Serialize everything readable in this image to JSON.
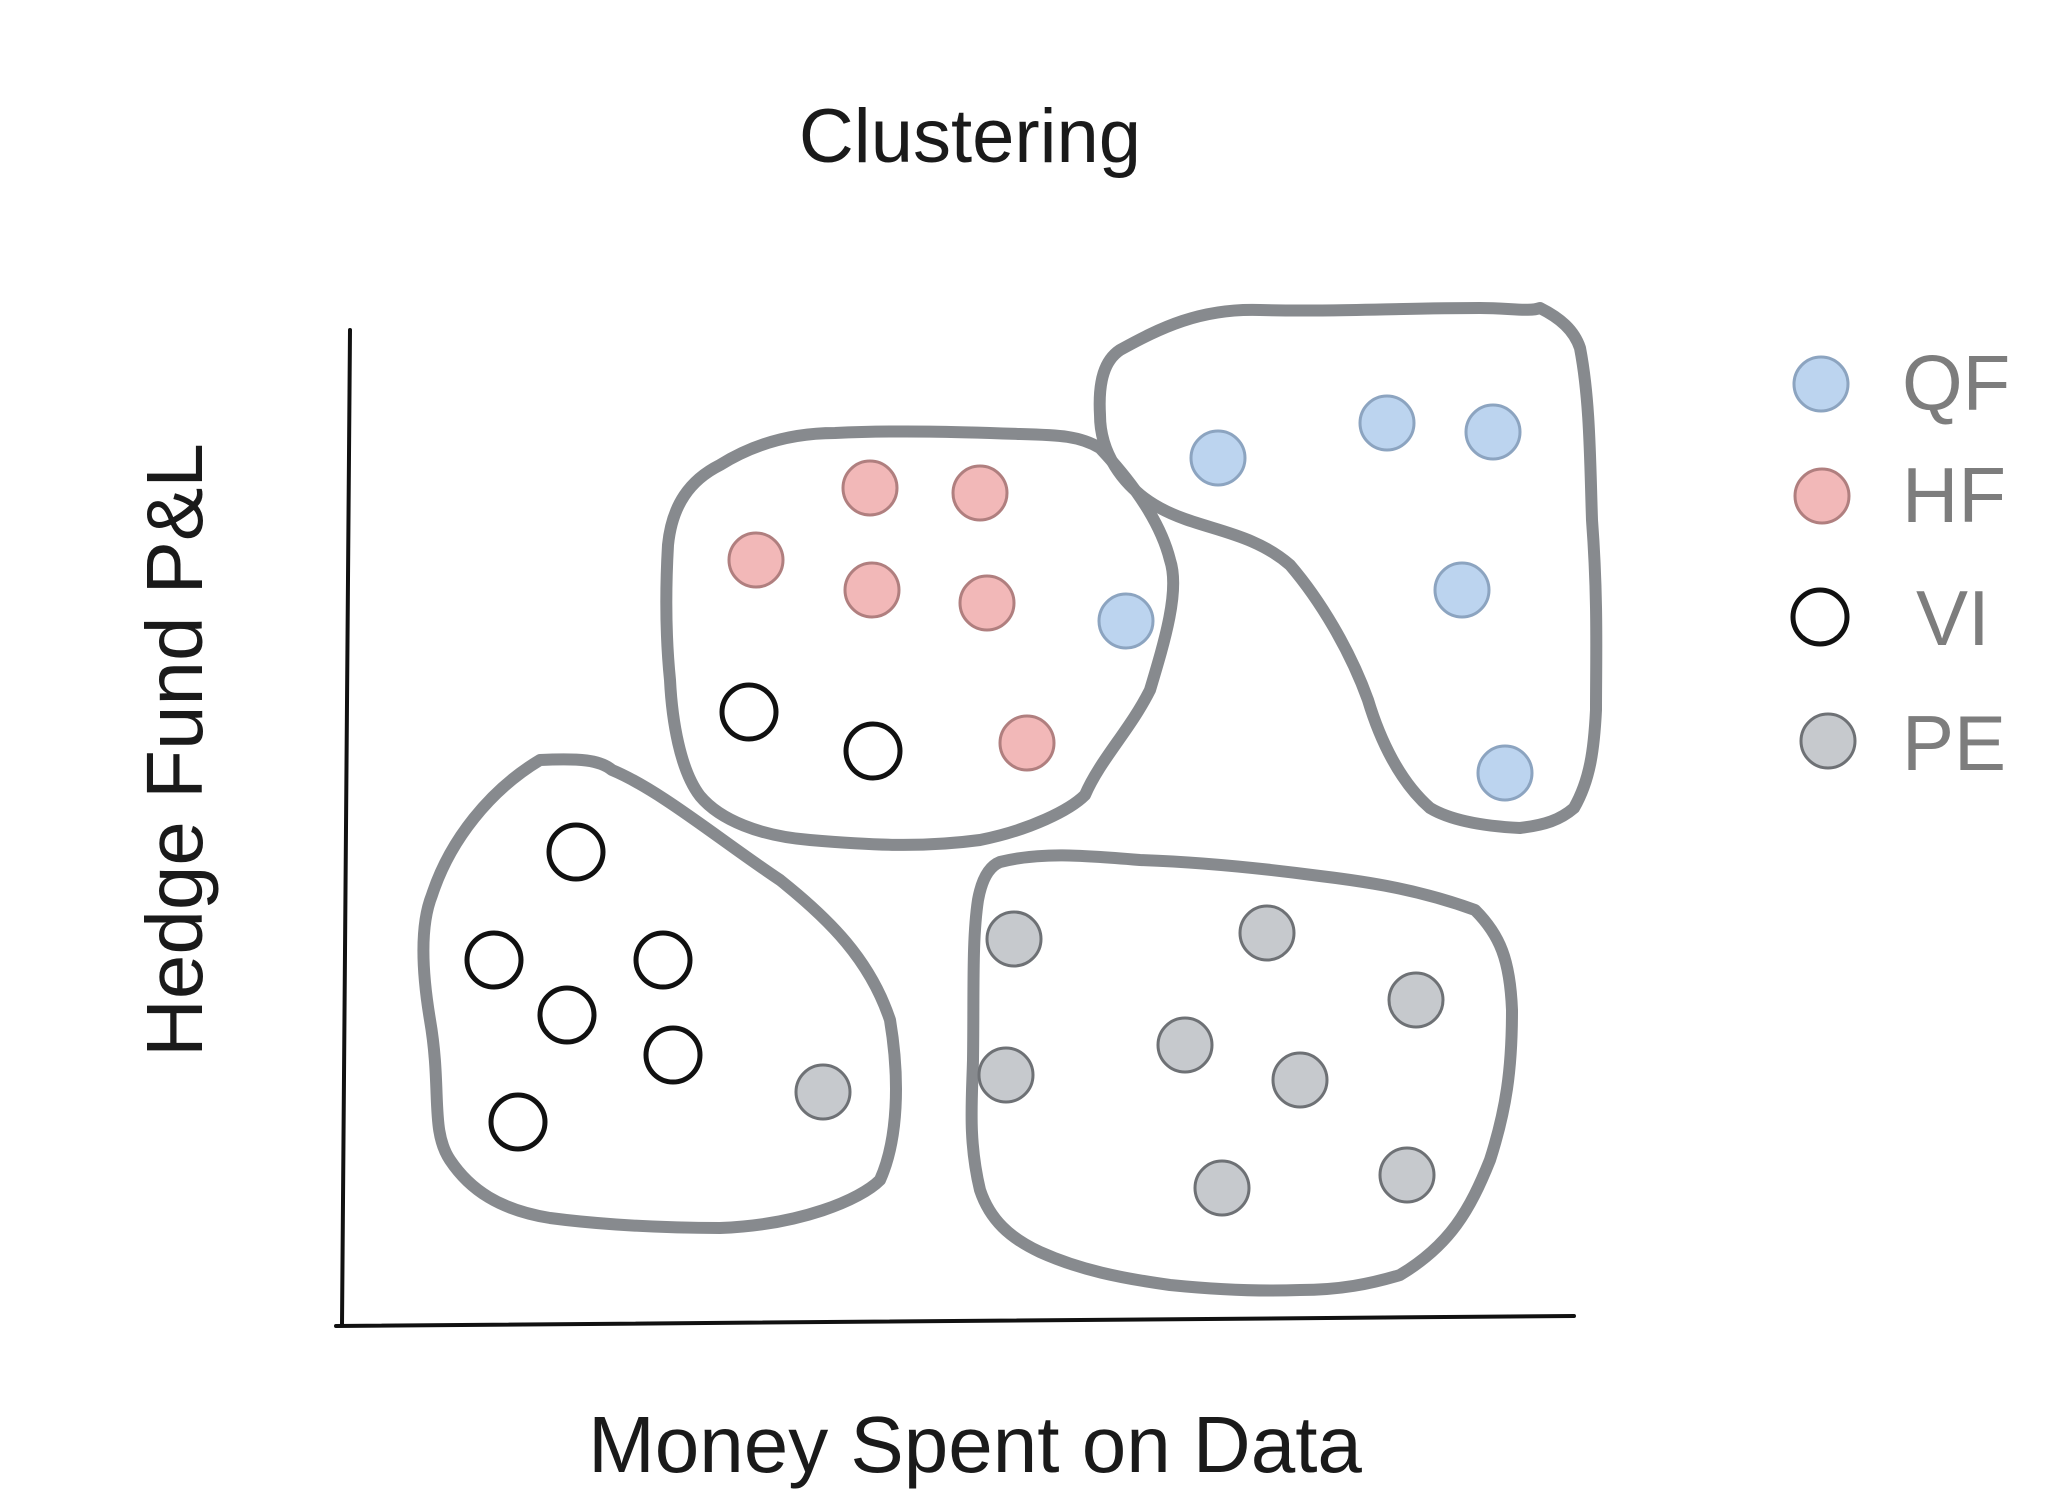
{
  "chart": {
    "title": "Clustering",
    "x_axis_label": "Money Spent on Data",
    "y_axis_label": "Hedge Fund P&L"
  },
  "legend": {
    "items": [
      {
        "key": "QF",
        "label": "QF",
        "fill": "#bcd4ef",
        "stroke": "#8ca4c0"
      },
      {
        "key": "HF",
        "label": "HF",
        "fill": "#f2b8b8",
        "stroke": "#b07f7f"
      },
      {
        "key": "VI",
        "label": "VI",
        "fill": "#ffffff",
        "stroke": "#111111"
      },
      {
        "key": "PE",
        "label": "PE",
        "fill": "#c6c9cd",
        "stroke": "#6e7175"
      }
    ]
  },
  "colors": {
    "cluster_outline": "#878a8e",
    "axis": "#111111",
    "title_text": "#1a1a1a",
    "legend_text": "#7d7d7d"
  },
  "diagram": {
    "clusters": [
      {
        "id": "bottom-left",
        "members": [
          "VI",
          "VI",
          "VI",
          "VI",
          "VI",
          "VI",
          "PE"
        ]
      },
      {
        "id": "center",
        "members": [
          "HF",
          "HF",
          "HF",
          "HF",
          "HF",
          "HF",
          "QF",
          "VI",
          "VI"
        ]
      },
      {
        "id": "top-right",
        "members": [
          "QF",
          "QF",
          "QF",
          "QF",
          "QF"
        ]
      },
      {
        "id": "bottom-right",
        "members": [
          "PE",
          "PE",
          "PE",
          "PE",
          "PE",
          "PE",
          "PE",
          "PE"
        ]
      }
    ]
  }
}
